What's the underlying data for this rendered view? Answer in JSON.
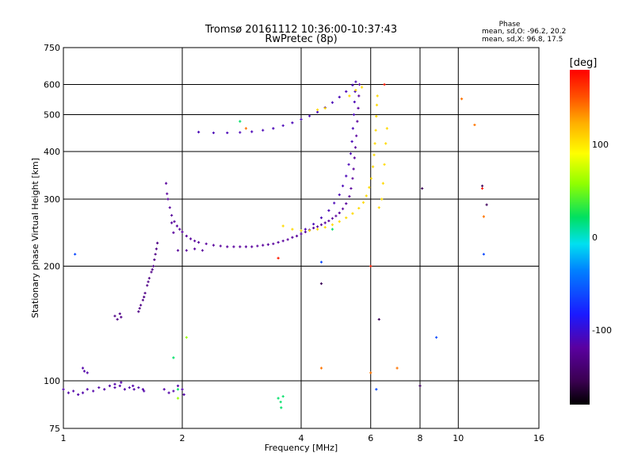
{
  "chart_data": {
    "type": "scatter",
    "title": "Tromsø 20161112 10:36:00-10:37:43",
    "subtitle": "RwPretec (8p)",
    "stats": {
      "heading": "Phase",
      "line1": "mean, sd,O: -96.2, 20.2",
      "line2": "mean, sd,X:  96.8, 17.5"
    },
    "xlabel": "Frequency [MHz]",
    "ylabel": "Stationary phase Virtual Height [km]",
    "x_scale": "log",
    "y_scale": "log",
    "xlim": [
      1,
      16
    ],
    "ylim": [
      75,
      750
    ],
    "x_ticks": [
      1,
      2,
      4,
      6,
      8,
      10,
      16
    ],
    "x_tick_labels": [
      "1",
      "2",
      "4",
      "6",
      "8",
      "10",
      "16"
    ],
    "y_ticks": [
      75,
      100,
      200,
      300,
      400,
      500,
      600,
      750
    ],
    "y_tick_labels": [
      "75",
      "100",
      "200",
      "300",
      "400",
      "500",
      "600",
      "750"
    ],
    "grid": true,
    "colorbar": {
      "label": "[deg]",
      "range": [
        -180,
        180
      ],
      "ticks": [
        100,
        0,
        -100
      ],
      "tick_labels": [
        "100",
        "0",
        "-100"
      ],
      "colormap": "rainbow"
    },
    "series": [
      {
        "phase_deg": -115,
        "points": [
          [
            1.0,
            95
          ],
          [
            1.03,
            93
          ],
          [
            1.06,
            94
          ],
          [
            1.09,
            92
          ],
          [
            1.12,
            93
          ],
          [
            1.15,
            95
          ],
          [
            1.19,
            94
          ],
          [
            1.23,
            96
          ],
          [
            1.27,
            95
          ],
          [
            1.31,
            97
          ],
          [
            1.35,
            96
          ],
          [
            1.39,
            97
          ],
          [
            1.43,
            95
          ],
          [
            1.47,
            96
          ],
          [
            1.51,
            95
          ],
          [
            1.55,
            96
          ],
          [
            1.59,
            95
          ],
          [
            1.35,
            98
          ],
          [
            1.4,
            99
          ],
          [
            1.5,
            97
          ],
          [
            1.6,
            94
          ],
          [
            1.12,
            108
          ],
          [
            1.15,
            105
          ],
          [
            1.13,
            106
          ],
          [
            1.8,
            95
          ],
          [
            1.85,
            93
          ],
          [
            1.9,
            94
          ],
          [
            1.95,
            97
          ],
          [
            2.0,
            95
          ],
          [
            2.02,
            92
          ]
        ]
      },
      {
        "phase_deg": -130,
        "points": [
          [
            1.35,
            148
          ],
          [
            1.37,
            145
          ],
          [
            1.39,
            150
          ],
          [
            1.4,
            147
          ],
          [
            1.55,
            152
          ],
          [
            1.57,
            158
          ],
          [
            1.59,
            163
          ],
          [
            1.61,
            170
          ],
          [
            1.63,
            178
          ],
          [
            1.65,
            186
          ],
          [
            1.67,
            193
          ],
          [
            1.69,
            200
          ],
          [
            1.7,
            208
          ],
          [
            1.71,
            215
          ],
          [
            1.72,
            222
          ],
          [
            1.73,
            230
          ],
          [
            1.56,
            155
          ],
          [
            1.6,
            166
          ],
          [
            1.64,
            182
          ],
          [
            1.68,
            196
          ]
        ]
      },
      {
        "phase_deg": -120,
        "points": [
          [
            1.82,
            330
          ],
          [
            1.83,
            310
          ],
          [
            1.84,
            300
          ],
          [
            1.86,
            285
          ],
          [
            1.88,
            272
          ],
          [
            1.91,
            262
          ],
          [
            1.94,
            255
          ],
          [
            1.97,
            250
          ],
          [
            2.0,
            246
          ],
          [
            2.05,
            240
          ],
          [
            2.1,
            236
          ],
          [
            2.15,
            233
          ],
          [
            2.2,
            231
          ],
          [
            2.3,
            229
          ],
          [
            2.4,
            227
          ],
          [
            2.5,
            226
          ],
          [
            2.6,
            225
          ],
          [
            2.7,
            225
          ],
          [
            2.8,
            225
          ],
          [
            2.9,
            225
          ],
          [
            3.0,
            225
          ],
          [
            3.1,
            226
          ],
          [
            3.2,
            227
          ],
          [
            3.3,
            228
          ],
          [
            3.4,
            229
          ],
          [
            3.5,
            231
          ],
          [
            3.6,
            233
          ],
          [
            3.7,
            235
          ],
          [
            3.8,
            238
          ],
          [
            3.9,
            240
          ],
          [
            4.0,
            243
          ],
          [
            4.1,
            246
          ],
          [
            4.2,
            249
          ],
          [
            4.3,
            252
          ],
          [
            4.4,
            254
          ],
          [
            4.5,
            257
          ],
          [
            4.6,
            260
          ],
          [
            4.7,
            263
          ],
          [
            4.8,
            267
          ],
          [
            4.9,
            271
          ],
          [
            5.0,
            276
          ],
          [
            5.1,
            283
          ],
          [
            5.2,
            292
          ],
          [
            5.3,
            305
          ],
          [
            5.35,
            320
          ],
          [
            5.4,
            340
          ],
          [
            5.43,
            360
          ],
          [
            5.46,
            385
          ],
          [
            5.49,
            410
          ],
          [
            5.52,
            440
          ],
          [
            5.55,
            480
          ],
          [
            5.58,
            520
          ],
          [
            5.6,
            560
          ],
          [
            5.62,
            600
          ],
          [
            1.95,
            220
          ],
          [
            2.05,
            220
          ],
          [
            2.15,
            222
          ],
          [
            2.25,
            220
          ],
          [
            1.9,
            245
          ],
          [
            1.88,
            260
          ]
        ]
      },
      {
        "phase_deg": -110,
        "points": [
          [
            4.1,
            250
          ],
          [
            4.3,
            258
          ],
          [
            4.5,
            268
          ],
          [
            4.7,
            280
          ],
          [
            4.85,
            293
          ],
          [
            5.0,
            308
          ],
          [
            5.1,
            325
          ],
          [
            5.2,
            345
          ],
          [
            5.28,
            370
          ],
          [
            5.34,
            395
          ],
          [
            5.38,
            425
          ],
          [
            5.41,
            460
          ],
          [
            5.44,
            500
          ],
          [
            5.46,
            540
          ],
          [
            5.48,
            575
          ],
          [
            2.2,
            450
          ],
          [
            2.4,
            448
          ],
          [
            2.6,
            448
          ],
          [
            2.8,
            449
          ],
          [
            3.0,
            451
          ],
          [
            3.2,
            455
          ],
          [
            3.4,
            460
          ],
          [
            3.6,
            468
          ],
          [
            3.8,
            476
          ],
          [
            4.0,
            486
          ],
          [
            4.2,
            496
          ],
          [
            4.4,
            508
          ],
          [
            4.6,
            522
          ],
          [
            4.8,
            538
          ],
          [
            5.0,
            556
          ],
          [
            5.2,
            575
          ],
          [
            5.4,
            598
          ],
          [
            5.5,
            610
          ]
        ]
      },
      {
        "phase_deg": 105,
        "points": [
          [
            3.6,
            255
          ],
          [
            3.8,
            250
          ],
          [
            4.0,
            248
          ],
          [
            4.2,
            248
          ],
          [
            4.4,
            250
          ],
          [
            4.6,
            253
          ],
          [
            4.8,
            257
          ],
          [
            5.0,
            262
          ],
          [
            5.2,
            268
          ],
          [
            5.4,
            275
          ],
          [
            5.6,
            284
          ],
          [
            5.75,
            294
          ],
          [
            5.85,
            306
          ],
          [
            5.95,
            322
          ],
          [
            6.02,
            340
          ],
          [
            6.08,
            365
          ],
          [
            6.12,
            392
          ],
          [
            6.15,
            420
          ],
          [
            6.18,
            455
          ],
          [
            6.2,
            495
          ],
          [
            6.22,
            530
          ],
          [
            6.24,
            560
          ],
          [
            6.3,
            285
          ],
          [
            6.4,
            300
          ],
          [
            6.45,
            330
          ],
          [
            6.5,
            370
          ],
          [
            6.55,
            420
          ],
          [
            6.6,
            460
          ],
          [
            5.3,
            560
          ],
          [
            5.5,
            580
          ],
          [
            5.7,
            590
          ],
          [
            4.6,
            520
          ],
          [
            4.4,
            515
          ]
        ]
      },
      {
        "phase_deg": 20,
        "points": [
          [
            3.5,
            90
          ],
          [
            3.55,
            88
          ],
          [
            3.6,
            91
          ],
          [
            3.56,
            85
          ],
          [
            1.95,
            95
          ],
          [
            1.9,
            115
          ],
          [
            2.8,
            480
          ],
          [
            4.8,
            250
          ]
        ]
      },
      {
        "phase_deg": 60,
        "points": [
          [
            1.95,
            90
          ],
          [
            2.05,
            130
          ]
        ]
      },
      {
        "phase_deg": 140,
        "points": [
          [
            6.0,
            105
          ],
          [
            7.0,
            108
          ],
          [
            4.5,
            108
          ],
          [
            10.2,
            550
          ],
          [
            11.0,
            470
          ],
          [
            11.6,
            270
          ],
          [
            2.9,
            460
          ]
        ]
      },
      {
        "phase_deg": 170,
        "points": [
          [
            6.0,
            200
          ],
          [
            3.5,
            210
          ],
          [
            11.5,
            320
          ],
          [
            6.5,
            600
          ]
        ]
      },
      {
        "phase_deg": -150,
        "points": [
          [
            4.5,
            180
          ],
          [
            8.0,
            97
          ],
          [
            11.8,
            290
          ],
          [
            11.5,
            325
          ],
          [
            8.1,
            320
          ],
          [
            6.3,
            145
          ]
        ]
      },
      {
        "phase_deg": -60,
        "points": [
          [
            8.8,
            130
          ],
          [
            6.2,
            95
          ],
          [
            11.6,
            215
          ],
          [
            1.07,
            215
          ],
          [
            4.5,
            205
          ]
        ]
      }
    ]
  }
}
